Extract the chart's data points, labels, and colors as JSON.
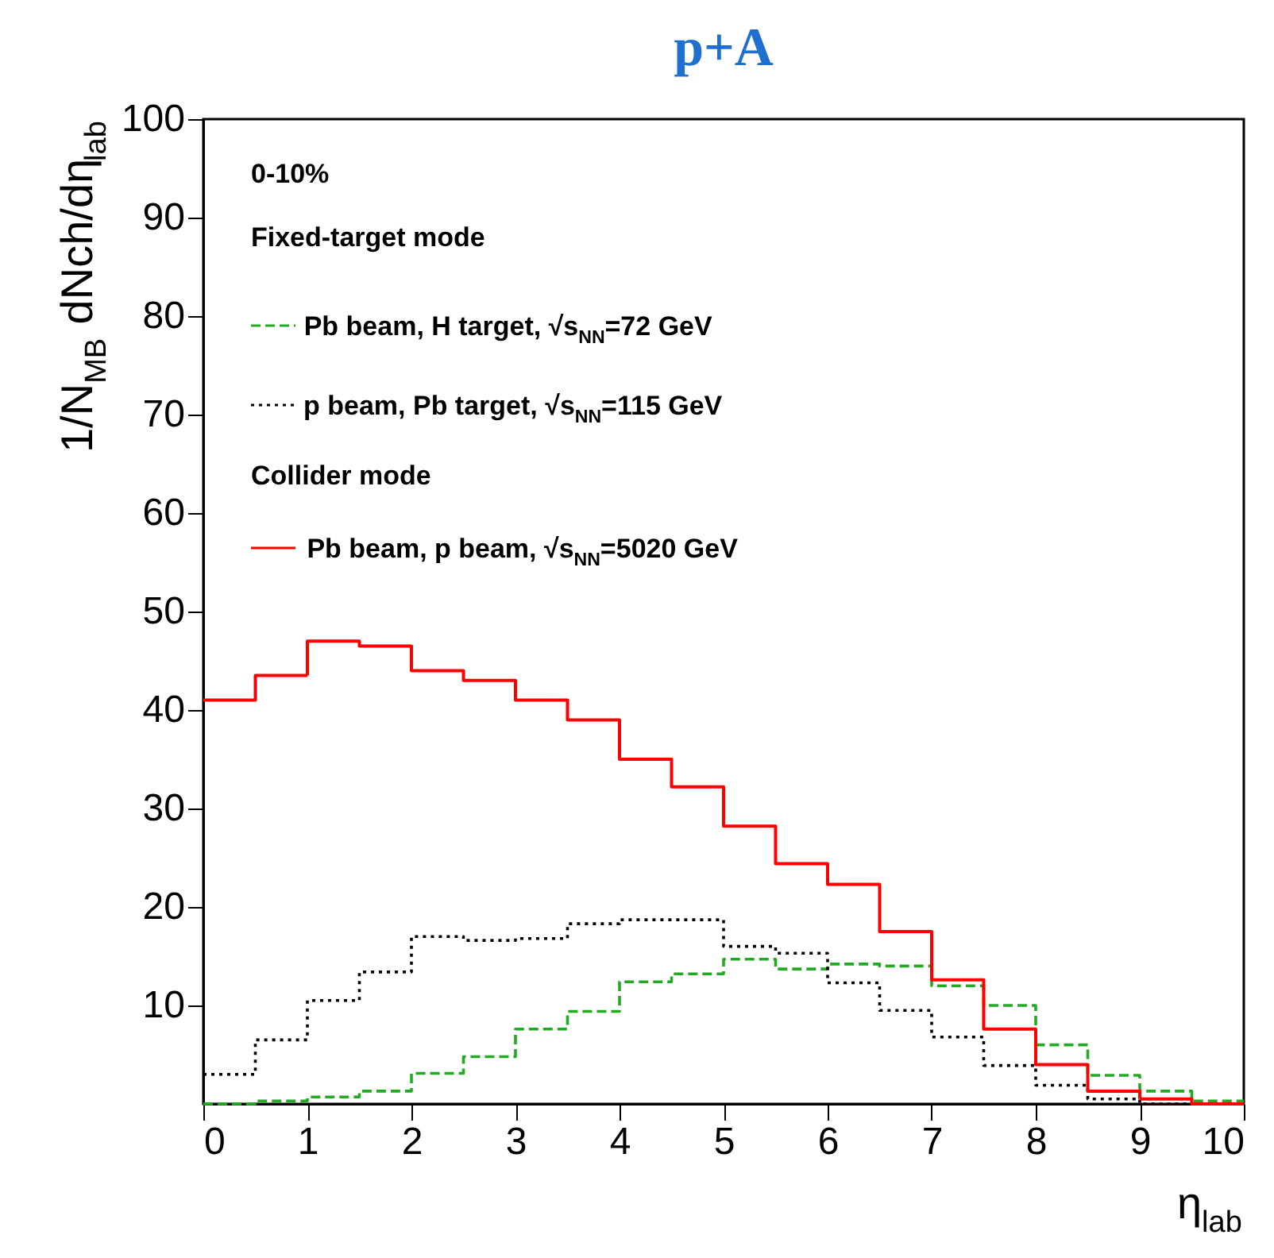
{
  "chart_data": {
    "type": "histogram",
    "title": "p+A",
    "xlabel": "η$_{lab}$",
    "ylabel": "1/N$_{MB}$ dNch/dη$_{lab}$",
    "bins": [
      0,
      0.5,
      1,
      1.5,
      2,
      2.5,
      3,
      3.5,
      4,
      4.5,
      5,
      5.5,
      6,
      6.5,
      7,
      7.5,
      8,
      8.5,
      9,
      9.5,
      10
    ],
    "series": [
      {
        "name": "Pb beam, H target, √s$_{NN}$=72 GeV",
        "color": "#22aa22",
        "line_style": "dashed",
        "values": [
          0,
          0.3,
          0.7,
          1.3,
          3.1,
          4.8,
          7.6,
          9.4,
          12.4,
          13.2,
          14.7,
          13.7,
          14.2,
          14,
          12,
          10,
          6,
          2.9,
          1.3,
          0.3
        ]
      },
      {
        "name": "p beam, Pb target, √s$_{NN}$=115 GeV",
        "color": "#000000",
        "line_style": "dotted",
        "values": [
          3,
          6.5,
          10.5,
          13.4,
          17,
          16.6,
          16.8,
          18.3,
          18.7,
          18.7,
          16,
          15.3,
          12.3,
          9.5,
          6.8,
          3.9,
          1.9,
          0.5,
          0,
          0
        ]
      },
      {
        "name": "Pb beam, p beam, √s$_{NN}$=5020 GeV",
        "color": "#ff0000",
        "line_style": "solid",
        "values": [
          41,
          43.5,
          47,
          46.5,
          44,
          43,
          41,
          39,
          35,
          32.2,
          28.2,
          24.4,
          22.3,
          17.5,
          12.6,
          7.6,
          4,
          1.3,
          0.5,
          0
        ]
      }
    ],
    "annotations": [
      "0-10%",
      "Fixed-target mode",
      "Collider mode"
    ],
    "xlim": [
      0,
      10
    ],
    "ylim": [
      0,
      100
    ],
    "xticks": [
      0,
      1,
      2,
      3,
      4,
      5,
      6,
      7,
      8,
      9,
      10
    ],
    "yticks": [
      10,
      20,
      30,
      40,
      50,
      60,
      70,
      80,
      90,
      100
    ],
    "grid": false,
    "legend": "top left"
  }
}
